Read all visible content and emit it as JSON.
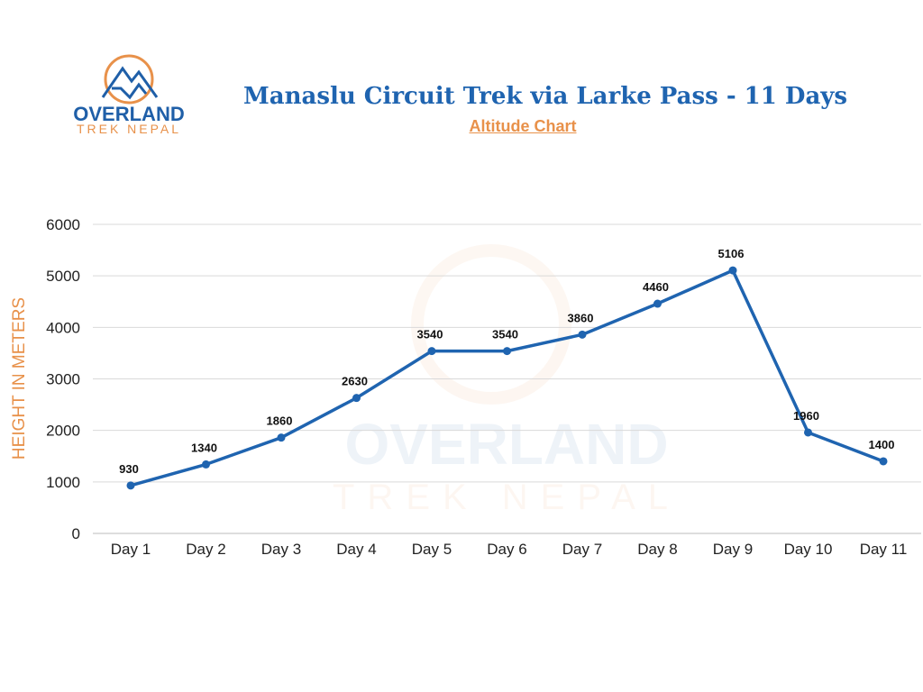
{
  "logo": {
    "line1": "OVERLAND",
    "line2": "TREK NEPAL"
  },
  "colors": {
    "line": "#1f64b0",
    "accent": "#e8914a",
    "grid": "#d9d9d9"
  },
  "chart_data": {
    "type": "line",
    "title": "Manaslu Circuit Trek via Larke Pass  - 11 Days",
    "subtitle": "Altitude Chart",
    "xlabel": "",
    "ylabel": "HEIGHT IN METERS",
    "categories": [
      "Day 1",
      "Day 2",
      "Day 3",
      "Day 4",
      "Day 5",
      "Day 6",
      "Day 7",
      "Day 8",
      "Day 9",
      "Day 10",
      "Day 11"
    ],
    "values": [
      930,
      1340,
      1860,
      2630,
      3540,
      3540,
      3860,
      4460,
      5106,
      1960,
      1400
    ],
    "ylim": [
      0,
      6000
    ],
    "yticks": [
      0,
      1000,
      2000,
      3000,
      4000,
      5000,
      6000
    ],
    "grid": true,
    "legend": "none"
  }
}
